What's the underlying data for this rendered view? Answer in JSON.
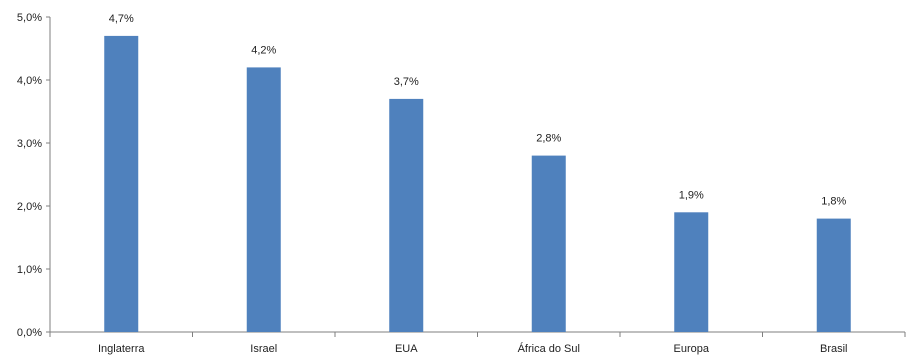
{
  "chart_data": {
    "type": "bar",
    "categories": [
      "Inglaterra",
      "Israel",
      "EUA",
      "África do Sul",
      "Europa",
      "Brasil"
    ],
    "values": [
      4.7,
      4.2,
      3.7,
      2.8,
      1.9,
      1.8
    ],
    "data_labels": [
      "4,7%",
      "4,2%",
      "3,7%",
      "2,8%",
      "1,9%",
      "1,8%"
    ],
    "title": "",
    "xlabel": "",
    "ylabel": "",
    "ylim": [
      0,
      5
    ],
    "yticks": [
      0,
      1,
      2,
      3,
      4,
      5
    ],
    "ytick_labels": [
      "0,0%",
      "1,0%",
      "2,0%",
      "3,0%",
      "4,0%",
      "5,0%"
    ],
    "grid": false,
    "legend": "none",
    "bar_color": "#4f81bd"
  }
}
